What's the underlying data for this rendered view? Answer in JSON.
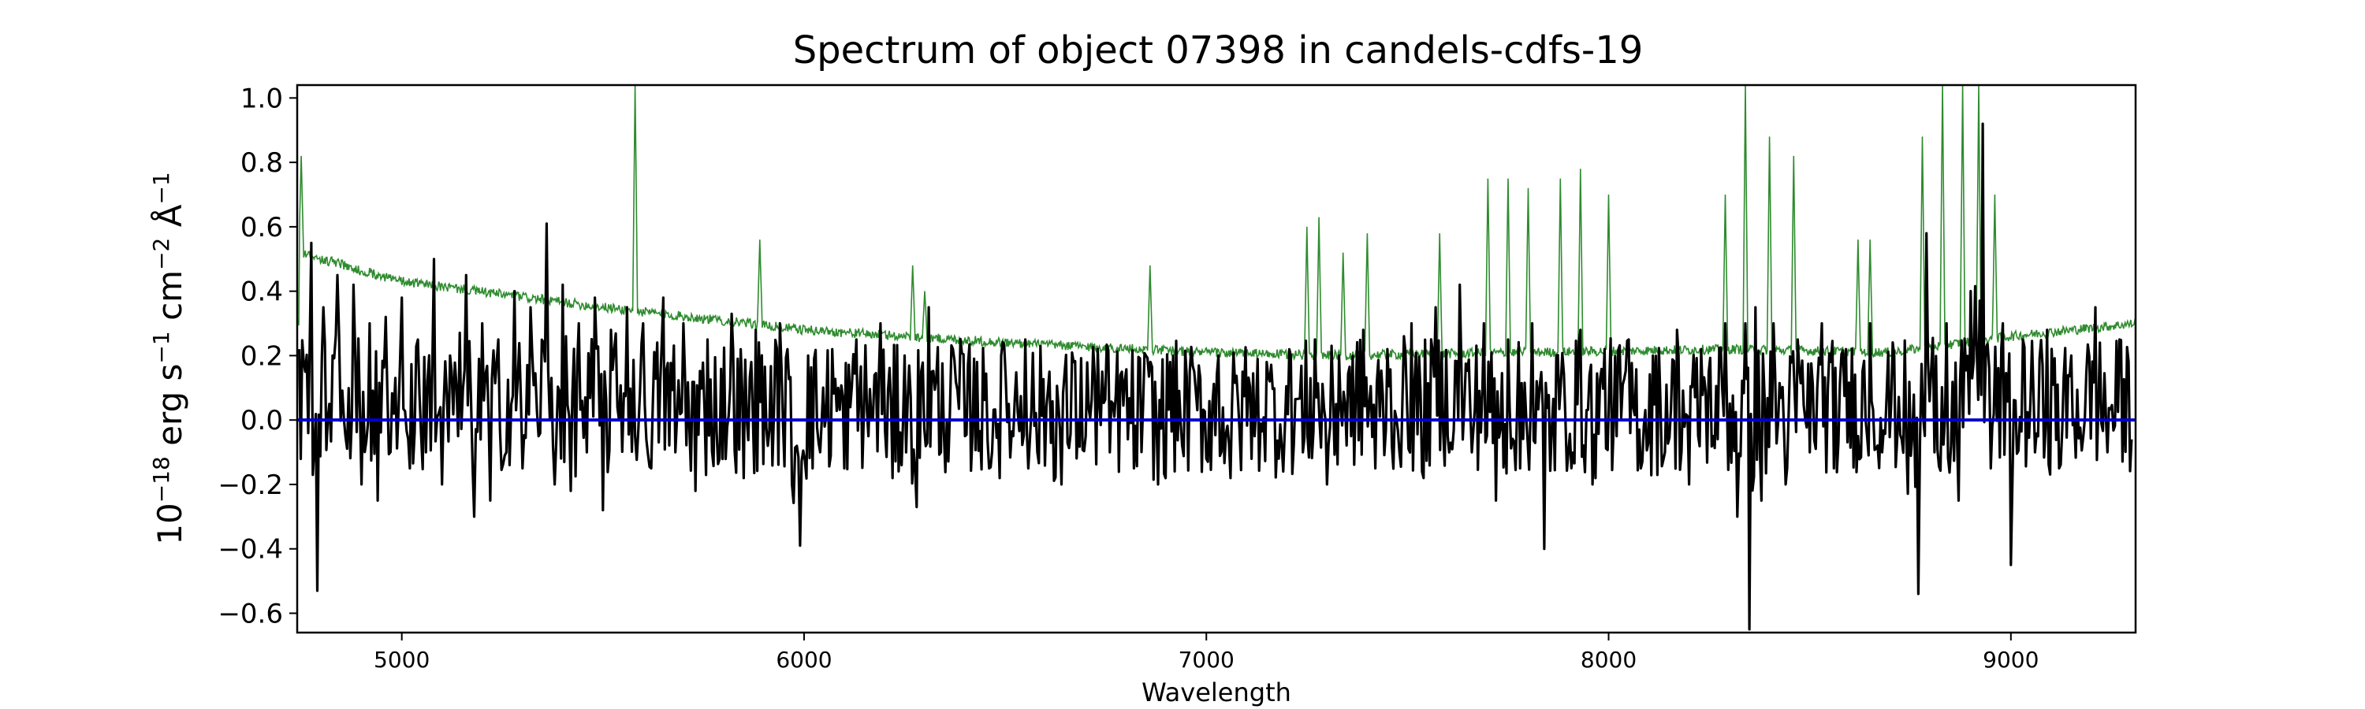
{
  "chart_data": {
    "type": "line",
    "title": "Spectrum of object 07398 in candels-cdfs-19",
    "xlabel": "Wavelength",
    "ylabel_parts": {
      "base": "10",
      "exp1": "−18",
      "unit1": " erg s",
      "exp2": "−1",
      "unit2": " cm",
      "exp3": "−2",
      "unit3": " Å",
      "exp4": "−1"
    },
    "xlim": [
      4740,
      9310
    ],
    "ylim": [
      -0.66,
      1.04
    ],
    "xticks": [
      5000,
      6000,
      7000,
      8000,
      9000
    ],
    "xtick_labels": [
      "5000",
      "6000",
      "7000",
      "8000",
      "9000"
    ],
    "yticks": [
      -0.6,
      -0.4,
      -0.2,
      0.0,
      0.2,
      0.4,
      0.6,
      0.8,
      1.0
    ],
    "ytick_labels": [
      "−0.6",
      "−0.4",
      "−0.2",
      "0.0",
      "0.2",
      "0.4",
      "0.6",
      "0.8",
      "1.0"
    ],
    "grid": false,
    "series": [
      {
        "color": "#000000",
        "description": "black flux trace, noisy around zero; notable extremes",
        "points": [
          [
            4745,
            0.22
          ],
          [
            4760,
            0.15
          ],
          [
            4775,
            0.55
          ],
          [
            4790,
            -0.53
          ],
          [
            4805,
            0.35
          ],
          [
            4820,
            0.05
          ],
          [
            4840,
            0.45
          ],
          [
            4860,
            -0.05
          ],
          [
            4880,
            0.42
          ],
          [
            4900,
            -0.2
          ],
          [
            4920,
            0.3
          ],
          [
            4940,
            -0.25
          ],
          [
            4960,
            0.32
          ],
          [
            4980,
            0.02
          ],
          [
            5000,
            0.38
          ],
          [
            5020,
            -0.15
          ],
          [
            5040,
            0.25
          ],
          [
            5060,
            -0.1
          ],
          [
            5080,
            0.5
          ],
          [
            5100,
            -0.2
          ],
          [
            5120,
            0.2
          ],
          [
            5140,
            -0.05
          ],
          [
            5160,
            0.45
          ],
          [
            5180,
            -0.3
          ],
          [
            5200,
            0.3
          ],
          [
            5220,
            -0.25
          ],
          [
            5240,
            0.25
          ],
          [
            5260,
            -0.1
          ],
          [
            5280,
            0.4
          ],
          [
            5300,
            -0.15
          ],
          [
            5320,
            0.35
          ],
          [
            5340,
            -0.05
          ],
          [
            5360,
            0.61
          ],
          [
            5380,
            -0.2
          ],
          [
            5400,
            0.42
          ],
          [
            5420,
            -0.22
          ],
          [
            5440,
            0.3
          ],
          [
            5460,
            -0.1
          ],
          [
            5480,
            0.38
          ],
          [
            5500,
            -0.28
          ],
          [
            5520,
            0.28
          ],
          [
            5540,
            0.0
          ],
          [
            5560,
            0.35
          ],
          [
            5580,
            -0.05
          ],
          [
            5600,
            0.3
          ],
          [
            5620,
            -0.15
          ],
          [
            5650,
            0.38
          ],
          [
            5680,
            -0.1
          ],
          [
            5700,
            0.3
          ],
          [
            5730,
            -0.22
          ],
          [
            5760,
            0.25
          ],
          [
            5790,
            -0.12
          ],
          [
            5820,
            0.33
          ],
          [
            5850,
            -0.18
          ],
          [
            5880,
            0.28
          ],
          [
            5910,
            -0.08
          ],
          [
            5940,
            0.3
          ],
          [
            5970,
            -0.2
          ],
          [
            5990,
            -0.39
          ],
          [
            6010,
            0.2
          ],
          [
            6040,
            -0.1
          ],
          [
            6070,
            0.22
          ],
          [
            6100,
            -0.15
          ],
          [
            6130,
            0.25
          ],
          [
            6160,
            -0.05
          ],
          [
            6190,
            0.3
          ],
          [
            6220,
            -0.18
          ],
          [
            6250,
            0.2
          ],
          [
            6280,
            -0.27
          ],
          [
            6310,
            0.35
          ],
          [
            6340,
            -0.1
          ],
          [
            6370,
            0.22
          ],
          [
            6400,
            -0.05
          ],
          [
            6430,
            0.18
          ],
          [
            6460,
            -0.15
          ],
          [
            6490,
            0.2
          ],
          [
            6520,
            -0.05
          ],
          [
            6550,
            0.25
          ],
          [
            6580,
            -0.1
          ],
          [
            6610,
            0.15
          ],
          [
            6640,
            -0.2
          ],
          [
            6670,
            0.18
          ],
          [
            6700,
            -0.05
          ],
          [
            6730,
            0.22
          ],
          [
            6760,
            -0.1
          ],
          [
            6790,
            0.15
          ],
          [
            6820,
            -0.15
          ],
          [
            6850,
            0.2
          ],
          [
            6880,
            -0.2
          ],
          [
            6910,
            0.18
          ],
          [
            6940,
            -0.08
          ],
          [
            6970,
            0.15
          ],
          [
            7000,
            -0.12
          ],
          [
            7030,
            0.2
          ],
          [
            7060,
            -0.18
          ],
          [
            7090,
            0.15
          ],
          [
            7120,
            -0.05
          ],
          [
            7150,
            0.18
          ],
          [
            7180,
            -0.12
          ],
          [
            7210,
            0.2
          ],
          [
            7240,
            -0.1
          ],
          [
            7270,
            0.25
          ],
          [
            7300,
            -0.2
          ],
          [
            7330,
            0.2
          ],
          [
            7360,
            -0.05
          ],
          [
            7390,
            0.28
          ],
          [
            7420,
            -0.15
          ],
          [
            7450,
            0.22
          ],
          [
            7480,
            -0.1
          ],
          [
            7510,
            0.3
          ],
          [
            7540,
            -0.18
          ],
          [
            7570,
            0.35
          ],
          [
            7600,
            -0.05
          ],
          [
            7630,
            0.42
          ],
          [
            7660,
            -0.1
          ],
          [
            7690,
            0.3
          ],
          [
            7720,
            -0.25
          ],
          [
            7750,
            0.25
          ],
          [
            7780,
            -0.15
          ],
          [
            7810,
            0.3
          ],
          [
            7840,
            -0.4
          ],
          [
            7870,
            0.2
          ],
          [
            7900,
            -0.1
          ],
          [
            7930,
            0.28
          ],
          [
            7960,
            -0.2
          ],
          [
            7990,
            0.22
          ],
          [
            8020,
            -0.05
          ],
          [
            8050,
            0.25
          ],
          [
            8080,
            -0.15
          ],
          [
            8110,
            0.2
          ],
          [
            8140,
            -0.1
          ],
          [
            8170,
            0.28
          ],
          [
            8200,
            -0.2
          ],
          [
            8230,
            0.22
          ],
          [
            8260,
            -0.05
          ],
          [
            8290,
            0.3
          ],
          [
            8320,
            -0.3
          ],
          [
            8340,
            0.3
          ],
          [
            8350,
            -0.65
          ],
          [
            8365,
            0.35
          ],
          [
            8380,
            -0.25
          ],
          [
            8410,
            0.3
          ],
          [
            8440,
            -0.2
          ],
          [
            8470,
            0.25
          ],
          [
            8500,
            -0.1
          ],
          [
            8530,
            0.3
          ],
          [
            8560,
            -0.15
          ],
          [
            8590,
            0.22
          ],
          [
            8620,
            -0.05
          ],
          [
            8650,
            0.3
          ],
          [
            8680,
            -0.1
          ],
          [
            8710,
            0.2
          ],
          [
            8740,
            -0.05
          ],
          [
            8770,
            -0.54
          ],
          [
            8790,
            0.58
          ],
          [
            8810,
            -0.1
          ],
          [
            8840,
            0.3
          ],
          [
            8870,
            -0.25
          ],
          [
            8900,
            0.4
          ],
          [
            8930,
            0.92
          ],
          [
            8950,
            -0.15
          ],
          [
            8980,
            0.3
          ],
          [
            9000,
            -0.45
          ],
          [
            9030,
            0.25
          ],
          [
            9060,
            -0.1
          ],
          [
            9090,
            0.28
          ],
          [
            9120,
            -0.15
          ],
          [
            9150,
            0.2
          ],
          [
            9180,
            -0.05
          ],
          [
            9210,
            0.35
          ],
          [
            9240,
            -0.1
          ],
          [
            9270,
            0.25
          ],
          [
            9300,
            -0.06
          ]
        ]
      },
      {
        "color": "#2e8b2e",
        "description": "green error spectrum: smooth declining baseline with sky-line spikes",
        "baseline": [
          [
            4745,
            0.52
          ],
          [
            5000,
            0.43
          ],
          [
            5500,
            0.35
          ],
          [
            6000,
            0.28
          ],
          [
            6500,
            0.24
          ],
          [
            7000,
            0.21
          ],
          [
            7300,
            0.2
          ],
          [
            7800,
            0.21
          ],
          [
            8300,
            0.22
          ],
          [
            8700,
            0.21
          ],
          [
            9000,
            0.26
          ],
          [
            9310,
            0.3
          ]
        ],
        "spikes": [
          [
            4750,
            0.82
          ],
          [
            4790,
            0.5
          ],
          [
            5580,
            1.04
          ],
          [
            5890,
            0.56
          ],
          [
            6270,
            0.48
          ],
          [
            6300,
            0.4
          ],
          [
            6860,
            0.48
          ],
          [
            7250,
            0.6
          ],
          [
            7280,
            0.63
          ],
          [
            7340,
            0.52
          ],
          [
            7400,
            0.58
          ],
          [
            7580,
            0.58
          ],
          [
            7700,
            0.75
          ],
          [
            7750,
            0.75
          ],
          [
            7800,
            0.72
          ],
          [
            7880,
            0.75
          ],
          [
            7930,
            0.78
          ],
          [
            8000,
            0.7
          ],
          [
            8290,
            0.7
          ],
          [
            8340,
            1.04
          ],
          [
            8400,
            0.88
          ],
          [
            8460,
            0.82
          ],
          [
            8620,
            0.56
          ],
          [
            8650,
            0.56
          ],
          [
            8780,
            0.88
          ],
          [
            8830,
            1.04
          ],
          [
            8880,
            1.04
          ],
          [
            8920,
            1.04
          ],
          [
            8960,
            0.7
          ]
        ]
      },
      {
        "color": "#0000cc",
        "description": "zero reference line",
        "points": [
          [
            4740,
            0.0
          ],
          [
            9310,
            0.0
          ]
        ]
      }
    ]
  }
}
